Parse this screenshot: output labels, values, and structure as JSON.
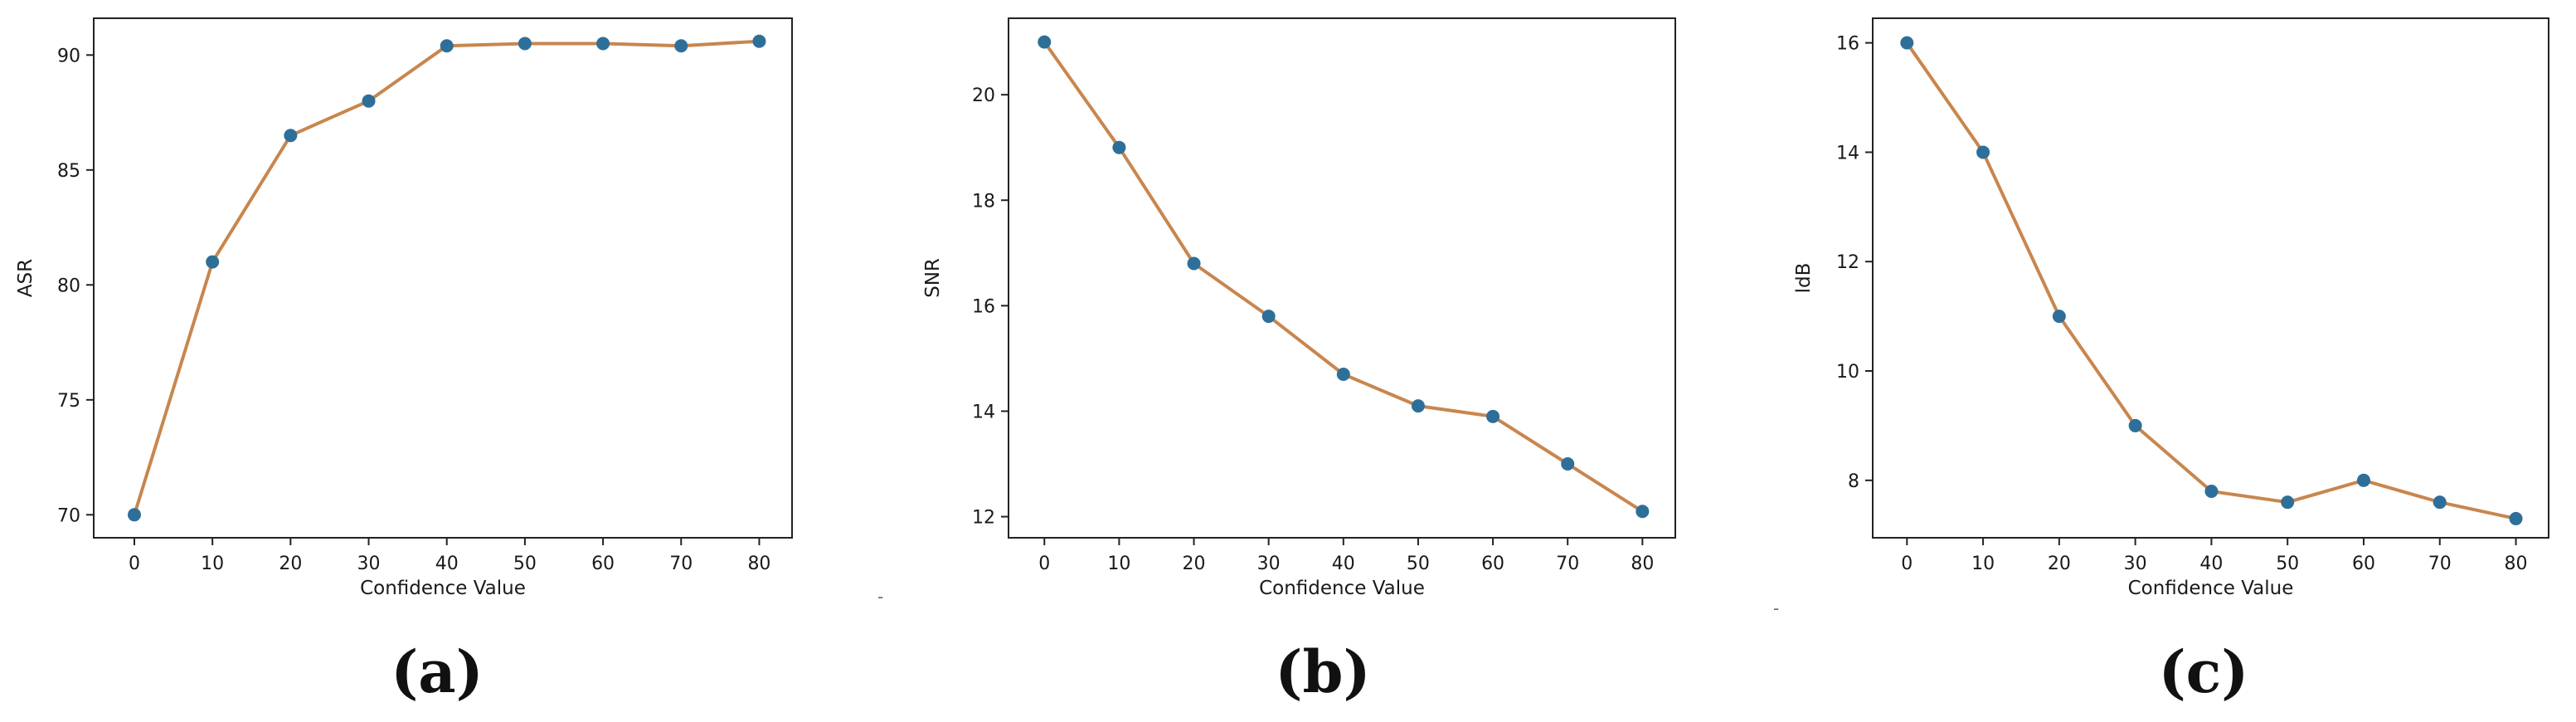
{
  "chart_data": [
    {
      "type": "line",
      "caption": "(a)",
      "xlabel": "Confidence Value",
      "ylabel": "ASR",
      "x": [
        0,
        10,
        20,
        30,
        40,
        50,
        60,
        70,
        80
      ],
      "series": [
        {
          "values": [
            70.0,
            81.0,
            86.5,
            88.0,
            90.4,
            90.5,
            90.5,
            90.4,
            90.6
          ]
        }
      ],
      "xticks": [
        0,
        10,
        20,
        30,
        40,
        50,
        60,
        70,
        80
      ],
      "yticks": [
        70,
        75,
        80,
        85,
        90
      ],
      "xlim": [
        -5.2,
        84.2
      ],
      "ylim": [
        69.0,
        91.6
      ],
      "grid": false,
      "line_color": "#c8864e",
      "marker_color": "#2e6f9a"
    },
    {
      "type": "line",
      "caption": "(b)",
      "xlabel": "Confidence Value",
      "ylabel": "SNR",
      "x": [
        0,
        10,
        20,
        30,
        40,
        50,
        60,
        70,
        80
      ],
      "series": [
        {
          "values": [
            21.0,
            19.0,
            16.8,
            15.8,
            14.7,
            14.1,
            13.9,
            13.0,
            12.1
          ]
        }
      ],
      "xticks": [
        0,
        10,
        20,
        30,
        40,
        50,
        60,
        70,
        80
      ],
      "yticks": [
        12,
        14,
        16,
        18,
        20
      ],
      "xlim": [
        -4.8,
        84.4
      ],
      "ylim": [
        11.6,
        21.45
      ],
      "grid": false,
      "line_color": "#c8864e",
      "marker_color": "#2e6f9a"
    },
    {
      "type": "line",
      "caption": "(c)",
      "xlabel": "Confidence Value",
      "ylabel": "ldB",
      "x": [
        0,
        10,
        20,
        30,
        40,
        50,
        60,
        70,
        80
      ],
      "series": [
        {
          "values": [
            16.0,
            14.0,
            11.0,
            9.0,
            7.8,
            7.6,
            8.0,
            7.6,
            7.3
          ]
        }
      ],
      "xticks": [
        0,
        10,
        20,
        30,
        40,
        50,
        60,
        70,
        80
      ],
      "yticks": [
        8,
        10,
        12,
        14,
        16
      ],
      "xlim": [
        -4.5,
        84.3
      ],
      "ylim": [
        6.95,
        16.45
      ],
      "grid": false,
      "line_color": "#c8864e",
      "marker_color": "#2e6f9a"
    }
  ],
  "stray_marks": [
    "-",
    "-"
  ]
}
